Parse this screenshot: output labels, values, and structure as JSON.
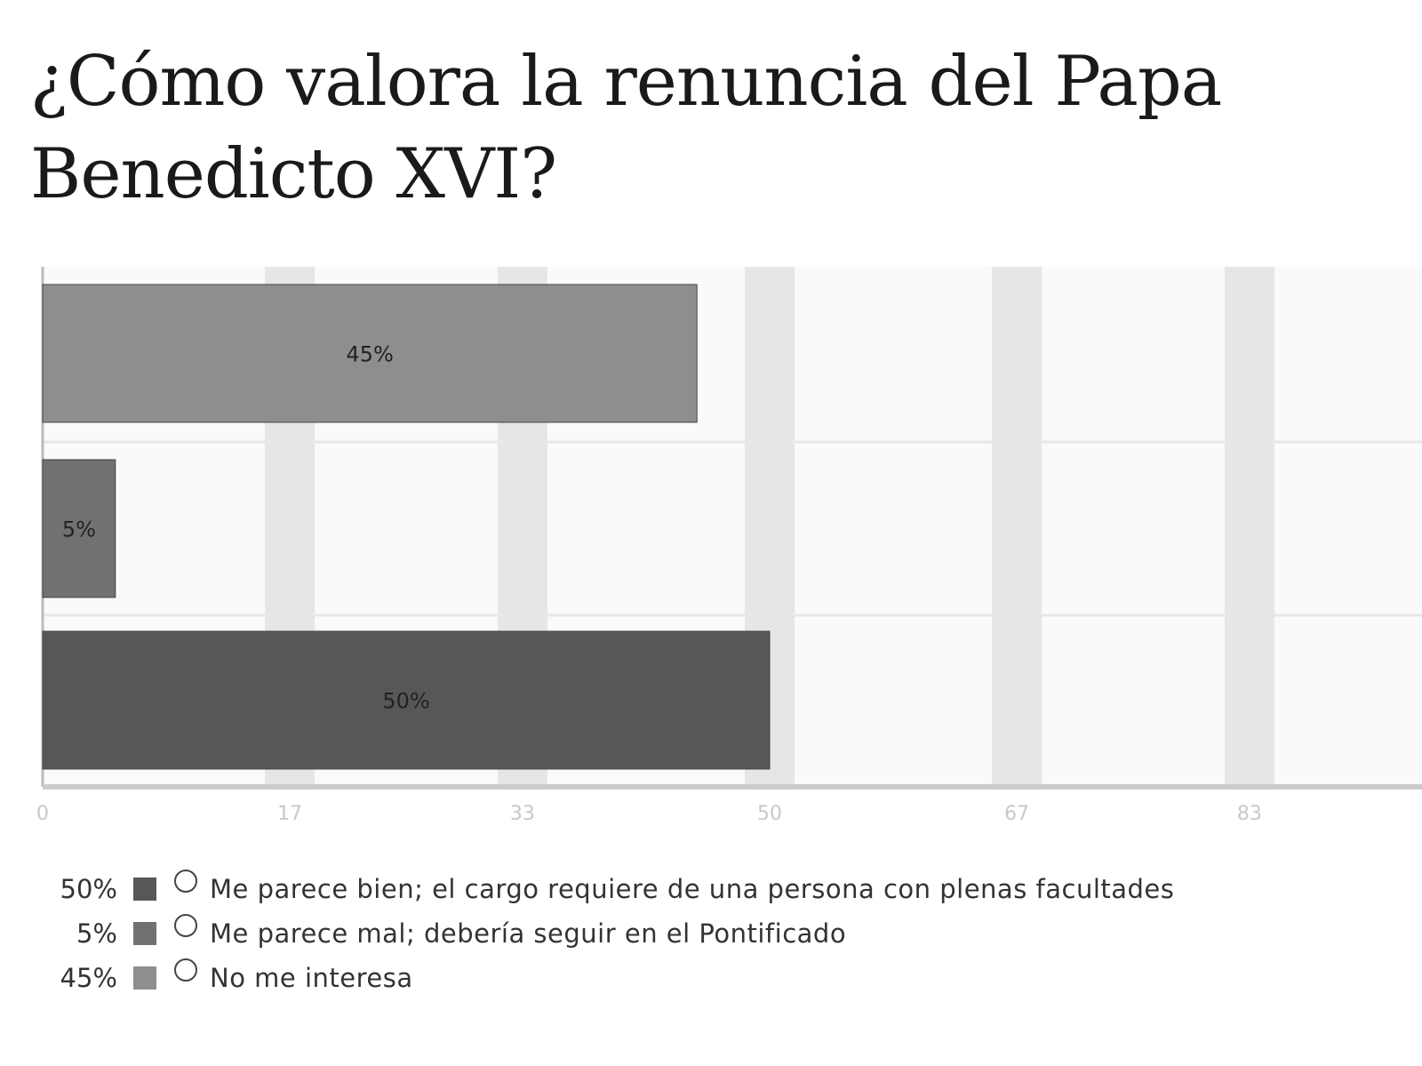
{
  "chart_data": {
    "type": "bar",
    "orientation": "horizontal",
    "title": "¿Cómo valora la renuncia del Papa Benedicto XVI?",
    "categories": [
      "No me interesa",
      "Me parece mal; debería seguir en el Pontificado",
      "Me parece bien; el cargo requiere de una persona con plenas facultades"
    ],
    "values": [
      45,
      5,
      50
    ],
    "data_labels": [
      "45%",
      "5%",
      "50%"
    ],
    "bar_colors": [
      "#8e8e8e",
      "#717171",
      "#575757"
    ],
    "xlim": [
      0,
      100
    ],
    "x_ticks": [
      "0",
      "17",
      "33",
      "50",
      "67",
      "83"
    ],
    "x_tick_values": [
      0,
      17,
      33,
      50,
      67,
      83
    ],
    "grid": true,
    "legend_position": "bottom-left"
  },
  "legend": [
    {
      "pct": "50%",
      "label": "Me parece bien; el cargo requiere de una persona con plenas facultades",
      "color": "#575757"
    },
    {
      "pct": "5%",
      "label": "Me parece mal; debería seguir en el Pontificado",
      "color": "#717171"
    },
    {
      "pct": "45%",
      "label": "No me interesa",
      "color": "#8e8e8e"
    }
  ]
}
